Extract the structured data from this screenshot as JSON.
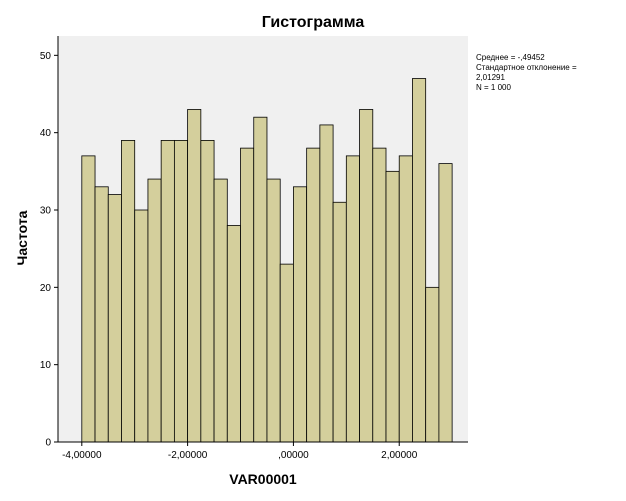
{
  "chart_data": {
    "type": "bar",
    "title": "Гистограмма",
    "xlabel": "VAR00001",
    "ylabel": "Частота",
    "x_ticks": [
      {
        "value": -4.0,
        "label": "-4,00000"
      },
      {
        "value": -2.0,
        "label": "-2,00000"
      },
      {
        "value": 0.0,
        "label": ",00000"
      },
      {
        "value": 2.0,
        "label": "2,00000"
      }
    ],
    "y_ticks": [
      0,
      10,
      20,
      30,
      40,
      50
    ],
    "xlim": [
      -4.45,
      3.3
    ],
    "ylim": [
      0,
      52.5
    ],
    "bin_start": -4.0,
    "bin_width": 0.25,
    "values": [
      37,
      33,
      32,
      39,
      30,
      34,
      39,
      39,
      43,
      39,
      34,
      28,
      38,
      42,
      34,
      23,
      33,
      38,
      41,
      31,
      37,
      43,
      38,
      35,
      37,
      47,
      20,
      36
    ],
    "bar_color": "#d4cf9c",
    "plot_background": "#f0f0f0",
    "grid": false,
    "legend": "none"
  },
  "stats": {
    "mean": "Среднее = -,49452",
    "std_label": "Стандартное отклонение =",
    "std_value": "2,01291",
    "n": "N = 1 000"
  }
}
